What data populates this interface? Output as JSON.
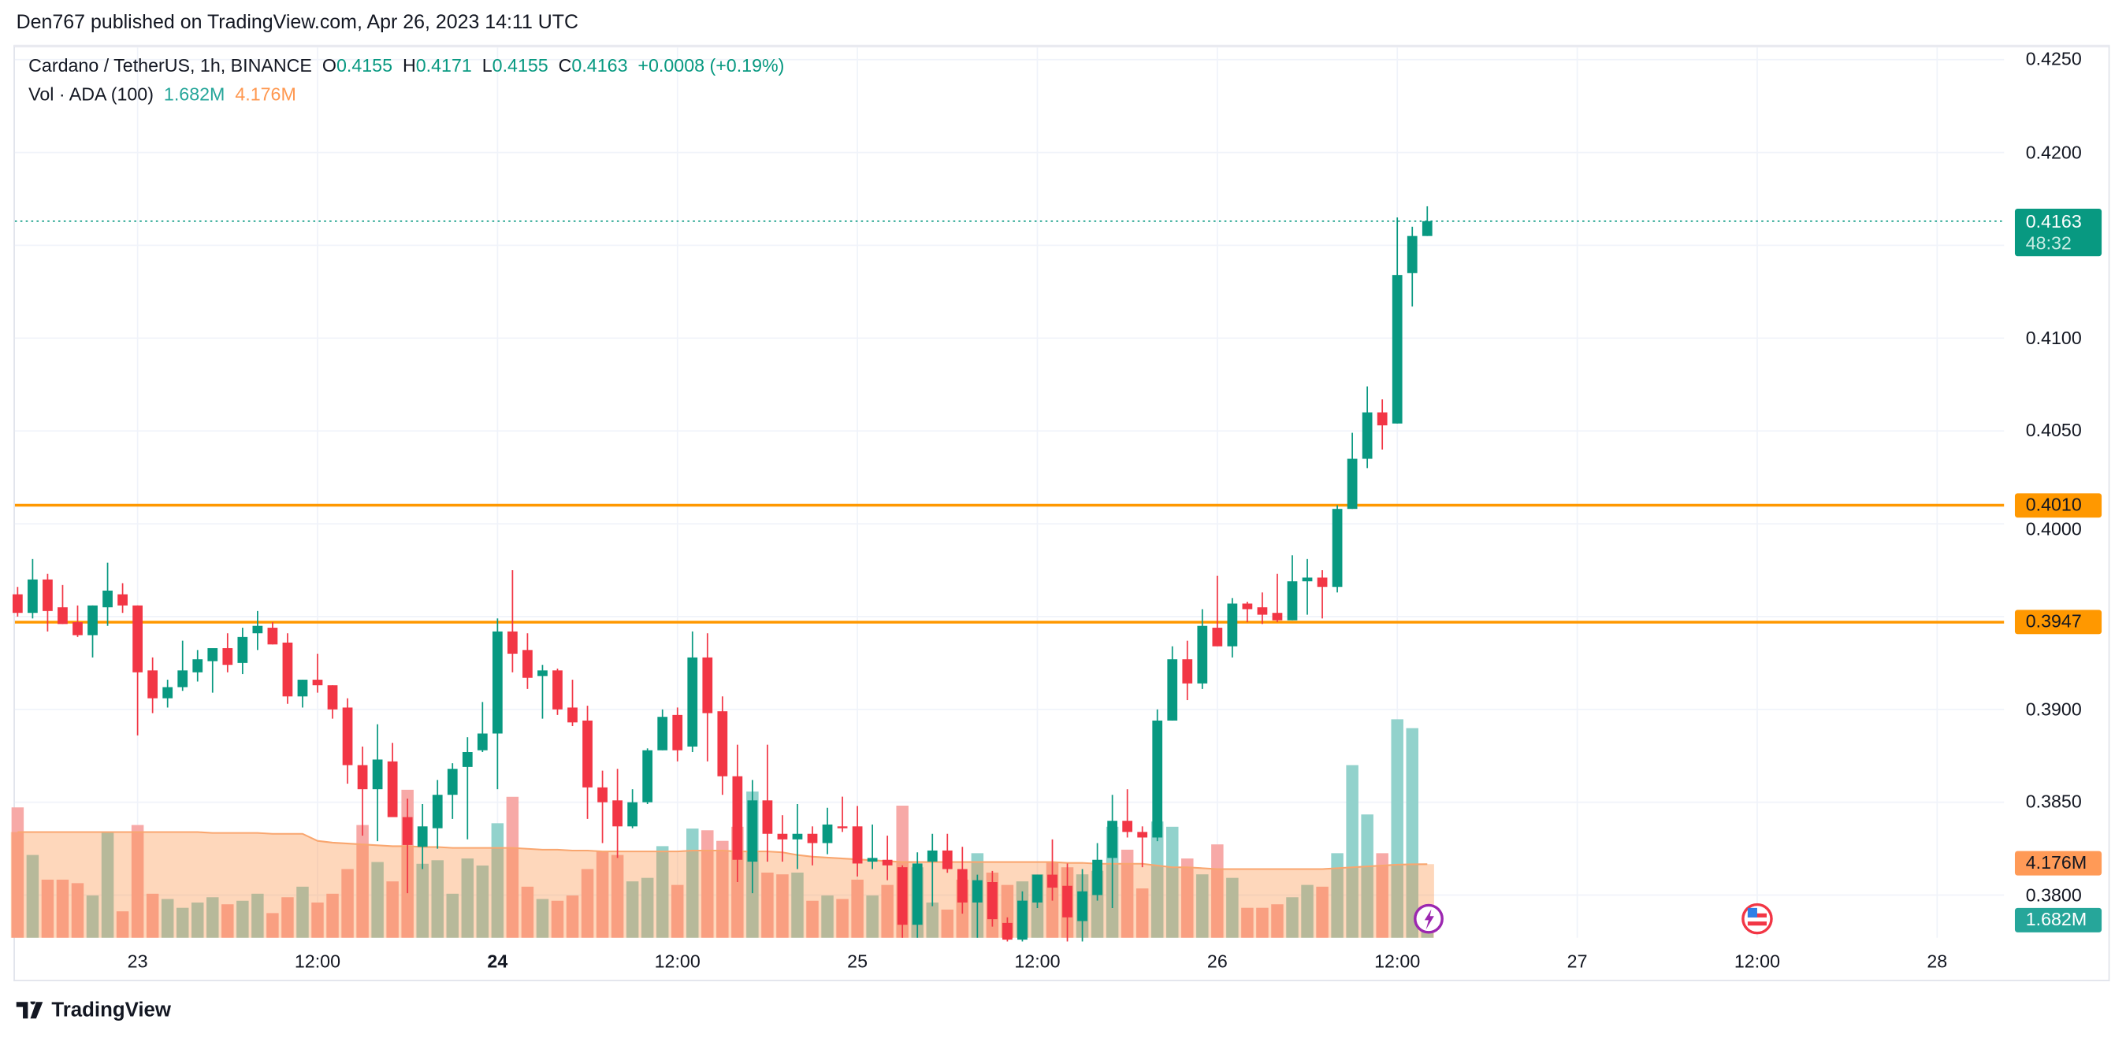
{
  "header": {
    "published": "Den767 published on TradingView.com, Apr 26, 2023 14:11 UTC"
  },
  "legend": {
    "symbol": "Cardano / TetherUS, 1h, BINANCE",
    "open_label": "O",
    "open": "0.4155",
    "high_label": "H",
    "high": "0.4171",
    "low_label": "L",
    "low": "0.4155",
    "close_label": "C",
    "close": "0.4163",
    "change": "+0.0008 (+0.19%)",
    "volume_label": "Vol · ADA (100)",
    "volume": "1.682M",
    "volume_ma": "4.176M"
  },
  "price_axis": {
    "ticks": [
      "0.4250",
      "0.4200",
      "0.4100",
      "0.4050",
      "0.4000",
      "0.3900",
      "0.3850",
      "0.3800"
    ],
    "current_price": "0.4163",
    "countdown": "48:32",
    "levels": [
      {
        "price": "0.4010"
      },
      {
        "price": "0.3947"
      }
    ],
    "volume_ma_tag": "4.176M",
    "volume_tag": "1.682M"
  },
  "time_axis": {
    "labels": [
      {
        "label": "23",
        "time": "04-23 00:00",
        "bold": false
      },
      {
        "label": "12:00",
        "time": "04-23 12:00",
        "bold": false
      },
      {
        "label": "24",
        "time": "04-24 00:00",
        "bold": true
      },
      {
        "label": "12:00",
        "time": "04-24 12:00",
        "bold": false
      },
      {
        "label": "25",
        "time": "04-25 00:00",
        "bold": false
      },
      {
        "label": "12:00",
        "time": "04-25 12:00",
        "bold": false
      },
      {
        "label": "26",
        "time": "04-26 00:00",
        "bold": false
      },
      {
        "label": "12:00",
        "time": "04-26 12:00",
        "bold": false
      },
      {
        "label": "27",
        "time": "04-27 00:00",
        "bold": false
      },
      {
        "label": "12:00",
        "time": "04-27 12:00",
        "bold": false
      },
      {
        "label": "28",
        "time": "04-28 00:00",
        "bold": false
      }
    ]
  },
  "events": [
    {
      "icon": "lightning-icon",
      "time": "04-26 14:00"
    },
    {
      "icon": "us-flag-icon",
      "time": "04-27 12:00"
    }
  ],
  "colors": {
    "up": "#089981",
    "down": "#f23645",
    "level": "#ff9800",
    "vol_up": "#92d2cc",
    "vol_down": "#f7a9a7",
    "vol_ma": "#f9a66f",
    "grid": "#f0f3fa"
  },
  "footer": {
    "brand": "TradingView"
  },
  "chart_data": {
    "type": "candlestick",
    "interval": "1h",
    "ylim": [
      0.378,
      0.426
    ],
    "volume_unit": "M",
    "columns": [
      "time",
      "open",
      "high",
      "low",
      "close",
      "volume"
    ],
    "candles": [
      [
        "04-22 16:00",
        0.3962,
        0.3966,
        0.395,
        0.3952,
        7.4
      ],
      [
        "04-22 17:00",
        0.3952,
        0.3981,
        0.3949,
        0.397,
        4.7
      ],
      [
        "04-22 18:00",
        0.397,
        0.3973,
        0.3942,
        0.3953,
        3.3
      ],
      [
        "04-22 19:00",
        0.3955,
        0.3967,
        0.3946,
        0.3946,
        3.3
      ],
      [
        "04-22 20:00",
        0.3947,
        0.3956,
        0.3939,
        0.394,
        3.1
      ],
      [
        "04-22 21:00",
        0.394,
        0.3956,
        0.3928,
        0.3956,
        2.4
      ],
      [
        "04-22 22:00",
        0.3955,
        0.3979,
        0.3945,
        0.3964,
        6.0
      ],
      [
        "04-22 23:00",
        0.3962,
        0.3968,
        0.3952,
        0.3956,
        1.5
      ],
      [
        "04-23 00:00",
        0.3956,
        0.3956,
        0.3886,
        0.392,
        6.4
      ],
      [
        "04-23 01:00",
        0.3921,
        0.3928,
        0.3898,
        0.3906,
        2.5
      ],
      [
        "04-23 02:00",
        0.3906,
        0.3916,
        0.3901,
        0.3912,
        2.2
      ],
      [
        "04-23 03:00",
        0.3912,
        0.3937,
        0.391,
        0.3921,
        1.7
      ],
      [
        "04-23 04:00",
        0.392,
        0.3932,
        0.3915,
        0.3927,
        2.0
      ],
      [
        "04-23 05:00",
        0.3926,
        0.3933,
        0.3909,
        0.3933,
        2.3
      ],
      [
        "04-23 06:00",
        0.3933,
        0.3941,
        0.392,
        0.3924,
        1.9
      ],
      [
        "04-23 07:00",
        0.3925,
        0.3944,
        0.3919,
        0.3939,
        2.1
      ],
      [
        "04-23 08:00",
        0.3941,
        0.3953,
        0.3932,
        0.3945,
        2.5
      ],
      [
        "04-23 09:00",
        0.3944,
        0.3947,
        0.3935,
        0.3935,
        1.4
      ],
      [
        "04-23 10:00",
        0.3936,
        0.3941,
        0.3903,
        0.3907,
        2.3
      ],
      [
        "04-23 11:00",
        0.3907,
        0.3916,
        0.3901,
        0.3916,
        2.9
      ],
      [
        "04-23 12:00",
        0.3916,
        0.393,
        0.3909,
        0.3913,
        2.0
      ],
      [
        "04-23 13:00",
        0.3913,
        0.3913,
        0.3895,
        0.39,
        2.5
      ],
      [
        "04-23 14:00",
        0.3901,
        0.3906,
        0.386,
        0.387,
        3.9
      ],
      [
        "04-23 15:00",
        0.387,
        0.388,
        0.3832,
        0.3857,
        6.4
      ],
      [
        "04-23 16:00",
        0.3857,
        0.3892,
        0.3829,
        0.3873,
        4.3
      ],
      [
        "04-23 17:00",
        0.3872,
        0.3882,
        0.3842,
        0.3842,
        3.2
      ],
      [
        "04-23 18:00",
        0.3842,
        0.3852,
        0.3801,
        0.3827,
        8.4
      ],
      [
        "04-23 19:00",
        0.3826,
        0.3849,
        0.3814,
        0.3837,
        4.2
      ],
      [
        "04-23 20:00",
        0.3836,
        0.3862,
        0.3825,
        0.3854,
        4.4
      ],
      [
        "04-23 21:00",
        0.3854,
        0.3871,
        0.3841,
        0.3868,
        2.5
      ],
      [
        "04-23 22:00",
        0.3869,
        0.3885,
        0.383,
        0.3877,
        4.5
      ],
      [
        "04-23 23:00",
        0.3878,
        0.3904,
        0.3877,
        0.3887,
        4.1
      ],
      [
        "04-24 00:00",
        0.3887,
        0.3949,
        0.3857,
        0.3942,
        6.5
      ],
      [
        "04-24 01:00",
        0.3942,
        0.3975,
        0.392,
        0.393,
        8.0
      ],
      [
        "04-24 02:00",
        0.3932,
        0.3941,
        0.3911,
        0.3917,
        2.9
      ],
      [
        "04-24 03:00",
        0.3918,
        0.3924,
        0.3895,
        0.3921,
        2.2
      ],
      [
        "04-24 04:00",
        0.3921,
        0.3922,
        0.3897,
        0.39,
        2.1
      ],
      [
        "04-24 05:00",
        0.3901,
        0.3916,
        0.3891,
        0.3893,
        2.4
      ],
      [
        "04-24 06:00",
        0.3894,
        0.3902,
        0.3841,
        0.3858,
        3.9
      ],
      [
        "04-24 07:00",
        0.3858,
        0.3867,
        0.3828,
        0.385,
        4.9
      ],
      [
        "04-24 08:00",
        0.3851,
        0.3868,
        0.382,
        0.3837,
        4.7
      ],
      [
        "04-24 09:00",
        0.3837,
        0.3857,
        0.3836,
        0.385,
        3.2
      ],
      [
        "04-24 10:00",
        0.385,
        0.3879,
        0.3849,
        0.3878,
        3.4
      ],
      [
        "04-24 11:00",
        0.3878,
        0.39,
        0.3878,
        0.3896,
        5.2
      ],
      [
        "04-24 12:00",
        0.3897,
        0.3901,
        0.3872,
        0.3878,
        3.0
      ],
      [
        "04-24 13:00",
        0.388,
        0.3942,
        0.3877,
        0.3928,
        6.2
      ],
      [
        "04-24 14:00",
        0.3928,
        0.3941,
        0.3872,
        0.3898,
        6.1
      ],
      [
        "04-24 15:00",
        0.3899,
        0.3907,
        0.3854,
        0.3864,
        5.5
      ],
      [
        "04-24 16:00",
        0.3864,
        0.3881,
        0.3807,
        0.3819,
        6.3
      ],
      [
        "04-24 17:00",
        0.3818,
        0.3862,
        0.3801,
        0.3851,
        8.3
      ],
      [
        "04-24 18:00",
        0.3851,
        0.3881,
        0.3818,
        0.3833,
        3.7
      ],
      [
        "04-24 19:00",
        0.3833,
        0.3843,
        0.3818,
        0.383,
        3.6
      ],
      [
        "04-24 20:00",
        0.383,
        0.3849,
        0.3814,
        0.3833,
        3.7
      ],
      [
        "04-24 21:00",
        0.3833,
        0.3837,
        0.3816,
        0.3828,
        2.1
      ],
      [
        "04-24 22:00",
        0.3828,
        0.3847,
        0.3822,
        0.3838,
        2.4
      ],
      [
        "04-24 23:00",
        0.3837,
        0.3853,
        0.3834,
        0.3836,
        2.2
      ],
      [
        "04-25 00:00",
        0.3837,
        0.3848,
        0.381,
        0.3817,
        3.3
      ],
      [
        "04-25 01:00",
        0.3818,
        0.3838,
        0.3814,
        0.382,
        2.4
      ],
      [
        "04-25 02:00",
        0.3819,
        0.3832,
        0.3808,
        0.3816,
        3.0
      ],
      [
        "04-25 03:00",
        0.3815,
        0.3816,
        0.3777,
        0.3784,
        7.5
      ],
      [
        "04-25 04:00",
        0.3784,
        0.3823,
        0.3777,
        0.3817,
        4.0
      ],
      [
        "04-25 05:00",
        0.3818,
        0.3833,
        0.3794,
        0.3824,
        2.0
      ],
      [
        "04-25 06:00",
        0.3824,
        0.3833,
        0.3812,
        0.3814,
        1.6
      ],
      [
        "04-25 07:00",
        0.3814,
        0.3826,
        0.379,
        0.3796,
        3.3
      ],
      [
        "04-25 08:00",
        0.3796,
        0.3811,
        0.3777,
        0.3808,
        4.8
      ],
      [
        "04-25 09:00",
        0.3807,
        0.3813,
        0.3783,
        0.3787,
        3.7
      ],
      [
        "04-25 10:00",
        0.3785,
        0.3788,
        0.3775,
        0.3776,
        3.0
      ],
      [
        "04-25 11:00",
        0.3776,
        0.3802,
        0.3775,
        0.3797,
        3.2
      ],
      [
        "04-25 12:00",
        0.3796,
        0.3811,
        0.3793,
        0.3811,
        3.6
      ],
      [
        "04-25 13:00",
        0.3811,
        0.383,
        0.3797,
        0.3804,
        4.3
      ],
      [
        "04-25 14:00",
        0.3805,
        0.3817,
        0.3775,
        0.3788,
        4.0
      ],
      [
        "04-25 15:00",
        0.3786,
        0.3814,
        0.3775,
        0.3802,
        3.6
      ],
      [
        "04-25 16:00",
        0.38,
        0.3828,
        0.3797,
        0.3819,
        3.8
      ],
      [
        "04-25 17:00",
        0.382,
        0.3854,
        0.3793,
        0.384,
        6.3
      ],
      [
        "04-25 18:00",
        0.384,
        0.3857,
        0.3831,
        0.3834,
        5.0
      ],
      [
        "04-25 19:00",
        0.3834,
        0.3837,
        0.3815,
        0.3831,
        2.8
      ],
      [
        "04-25 20:00",
        0.3831,
        0.39,
        0.3829,
        0.3894,
        6.6
      ],
      [
        "04-25 21:00",
        0.3894,
        0.3934,
        0.3894,
        0.3927,
        6.3
      ],
      [
        "04-25 22:00",
        0.3927,
        0.3937,
        0.3905,
        0.3914,
        4.5
      ],
      [
        "04-25 23:00",
        0.3914,
        0.3954,
        0.3911,
        0.3945,
        3.6
      ],
      [
        "04-26 00:00",
        0.3944,
        0.3972,
        0.3934,
        0.3934,
        5.3
      ],
      [
        "04-26 01:00",
        0.3934,
        0.396,
        0.3928,
        0.3957,
        3.4
      ],
      [
        "04-26 02:00",
        0.3957,
        0.3958,
        0.3947,
        0.3954,
        1.7
      ],
      [
        "04-26 03:00",
        0.3955,
        0.3963,
        0.3946,
        0.3951,
        1.7
      ],
      [
        "04-26 04:00",
        0.3952,
        0.3973,
        0.3947,
        0.3948,
        1.9
      ],
      [
        "04-26 05:00",
        0.3948,
        0.3983,
        0.3948,
        0.3969,
        2.3
      ],
      [
        "04-26 06:00",
        0.3969,
        0.3981,
        0.3951,
        0.3971,
        3.0
      ],
      [
        "04-26 07:00",
        0.3971,
        0.3975,
        0.3949,
        0.3966,
        2.9
      ],
      [
        "04-26 08:00",
        0.3966,
        0.401,
        0.3963,
        0.4008,
        4.8
      ],
      [
        "04-26 09:00",
        0.4008,
        0.4049,
        0.4008,
        0.4035,
        9.8
      ],
      [
        "04-26 10:00",
        0.4035,
        0.4074,
        0.403,
        0.406,
        7.0
      ],
      [
        "04-26 11:00",
        0.406,
        0.4067,
        0.404,
        0.4053,
        4.8
      ],
      [
        "04-26 12:00",
        0.4054,
        0.4165,
        0.4054,
        0.4134,
        12.4
      ],
      [
        "04-26 13:00",
        0.4135,
        0.416,
        0.4117,
        0.4155,
        11.9
      ],
      [
        "04-26 14:00",
        0.4155,
        0.4171,
        0.4155,
        0.4163,
        1.682
      ]
    ],
    "volume_ma": [
      6.0,
      6.0,
      6.0,
      6.0,
      6.0,
      6.0,
      6.0,
      6.0,
      6.0,
      6.0,
      6.0,
      6.0,
      6.0,
      5.95,
      5.95,
      5.95,
      5.95,
      5.9,
      5.9,
      5.9,
      5.5,
      5.4,
      5.35,
      5.3,
      5.25,
      5.2,
      5.2,
      5.15,
      5.15,
      5.1,
      5.1,
      5.1,
      5.1,
      5.1,
      5.05,
      5.0,
      5.0,
      4.95,
      4.95,
      4.9,
      4.9,
      4.9,
      4.9,
      4.9,
      4.9,
      4.95,
      4.95,
      4.95,
      4.9,
      4.9,
      4.9,
      4.85,
      4.7,
      4.6,
      4.55,
      4.5,
      4.45,
      4.4,
      4.35,
      4.3,
      4.3,
      4.3,
      4.3,
      4.3,
      4.3,
      4.3,
      4.3,
      4.3,
      4.3,
      4.3,
      4.25,
      4.25,
      4.2,
      4.2,
      4.2,
      4.2,
      4.1,
      4.0,
      4.0,
      3.95,
      3.9,
      3.9,
      3.9,
      3.9,
      3.9,
      3.9,
      3.9,
      3.9,
      3.95,
      4.0,
      4.05,
      4.1,
      4.15,
      4.17,
      4.176
    ]
  }
}
